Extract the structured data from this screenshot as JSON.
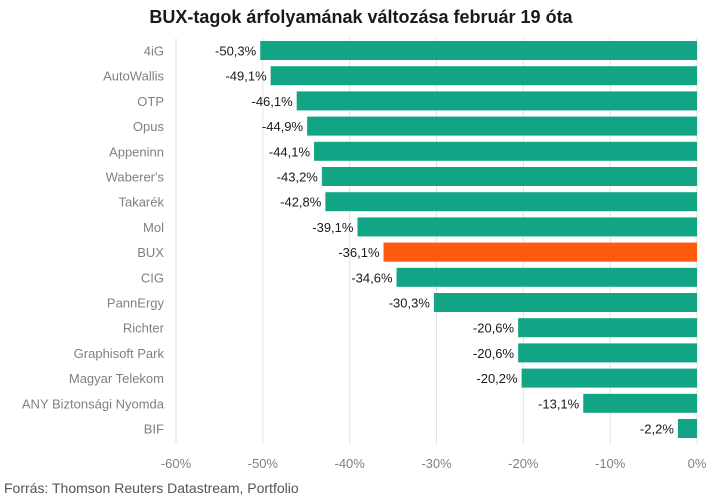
{
  "chart_data": {
    "type": "bar",
    "orientation": "horizontal",
    "title": "BUX-tagok árfolyamának változása február 19 óta",
    "categories": [
      "4iG",
      "AutoWallis",
      "OTP",
      "Opus",
      "Appeninn",
      "Waberer's",
      "Takarék",
      "Mol",
      "BUX",
      "CIG",
      "PannErgy",
      "Richter",
      "Graphisoft Park",
      "Magyar Telekom",
      "ANY Biztonsági Nyomda",
      "BIF"
    ],
    "values": [
      -50.3,
      -49.1,
      -46.1,
      -44.9,
      -44.1,
      -43.2,
      -42.8,
      -39.1,
      -36.1,
      -34.6,
      -30.3,
      -20.6,
      -20.6,
      -20.2,
      -13.1,
      -2.2
    ],
    "value_labels": [
      "-50,3%",
      "-49,1%",
      "-46,1%",
      "-44,9%",
      "-44,1%",
      "-43,2%",
      "-42,8%",
      "-39,1%",
      "-36,1%",
      "-34,6%",
      "-30,3%",
      "-20,6%",
      "-20,6%",
      "-20,2%",
      "-13,1%",
      "-2,2%"
    ],
    "highlight_category": "BUX",
    "xlim": [
      -60,
      0
    ],
    "x_ticks": [
      -60,
      -50,
      -40,
      -30,
      -20,
      -10,
      0
    ],
    "x_tick_labels": [
      "-60%",
      "-50%",
      "-40%",
      "-30%",
      "-20%",
      "-10%",
      "0%"
    ],
    "grid": true,
    "colors": {
      "bar": "#12a585",
      "highlight": "#ff5a0d",
      "grid": "#e2e2e2"
    }
  },
  "footer": {
    "source": "Forrás: Thomson Reuters Datastream, Portfolio"
  }
}
